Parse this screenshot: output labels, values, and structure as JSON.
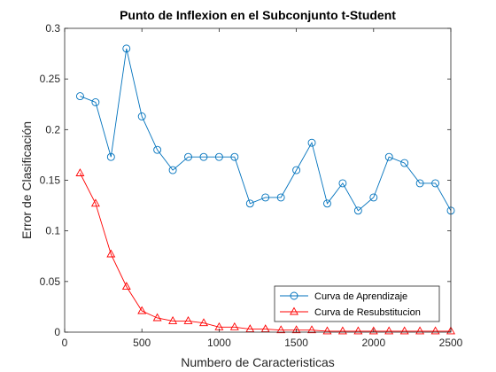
{
  "chart_data": {
    "type": "line",
    "title": "Punto de Inflexion en el Subconjunto t-Student",
    "xlabel": "Numbero de Caracteristicas",
    "ylabel": "Error de Clasificación",
    "xlim": [
      0,
      2500
    ],
    "ylim": [
      0,
      0.3
    ],
    "xticks": [
      0,
      500,
      1000,
      1500,
      2000,
      2500
    ],
    "yticks": [
      0,
      0.05,
      0.1,
      0.15,
      0.2,
      0.25,
      0.3
    ],
    "xtick_labels": [
      "0",
      "500",
      "1000",
      "1500",
      "2000",
      "2500"
    ],
    "ytick_labels": [
      "0",
      "0.05",
      "0.1",
      "0.15",
      "0.2",
      "0.25",
      "0.3"
    ],
    "grid": false,
    "legend_position": "bottom-right",
    "x": [
      100,
      200,
      300,
      400,
      500,
      600,
      700,
      800,
      900,
      1000,
      1100,
      1200,
      1300,
      1400,
      1500,
      1600,
      1700,
      1800,
      1900,
      2000,
      2100,
      2200,
      2300,
      2400,
      2500
    ],
    "series": [
      {
        "name": "Curva de Aprendizaje",
        "color": "#0072BD",
        "marker": "circle",
        "values": [
          0.233,
          0.227,
          0.173,
          0.28,
          0.213,
          0.18,
          0.16,
          0.173,
          0.173,
          0.173,
          0.173,
          0.127,
          0.133,
          0.133,
          0.16,
          0.187,
          0.127,
          0.147,
          0.12,
          0.133,
          0.173,
          0.167,
          0.147,
          0.147,
          0.12
        ]
      },
      {
        "name": "Curva de Resubstitucion",
        "color": "#FF0000",
        "marker": "triangle",
        "values": [
          0.157,
          0.127,
          0.077,
          0.045,
          0.021,
          0.014,
          0.011,
          0.011,
          0.009,
          0.005,
          0.005,
          0.003,
          0.003,
          0.002,
          0.002,
          0.002,
          0.001,
          0.001,
          0.001,
          0.001,
          0.001,
          0.001,
          0.001,
          0.001,
          0.001
        ]
      }
    ]
  }
}
